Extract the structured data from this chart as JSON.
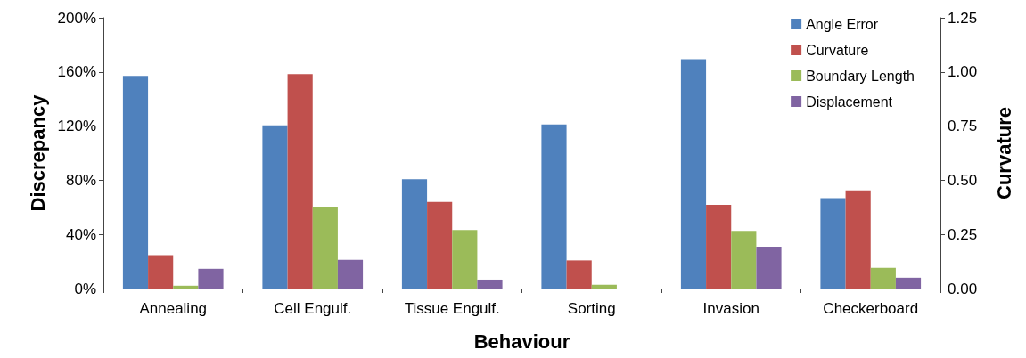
{
  "chart_data": {
    "type": "bar",
    "xlabel": "Behaviour",
    "ylabel": "Discrepancy",
    "y2label": "Curvature",
    "categories": [
      "Annealing",
      "Cell Engulf.",
      "Tissue Engulf.",
      "Sorting",
      "Invasion",
      "Checkerboard"
    ],
    "series": [
      {
        "name": "Angle Error",
        "color": "#4f81bd",
        "values": [
          157,
          120.5,
          80.7,
          121.2,
          169.4,
          66.7
        ]
      },
      {
        "name": "Curvature",
        "color": "#c0504d",
        "axis": "y2",
        "values": [
          0.154,
          0.99,
          0.4,
          0.13,
          0.387,
          0.453
        ]
      },
      {
        "name": "Boundary Length",
        "color": "#9bbb59",
        "values": [
          2.1,
          60.5,
          43.3,
          2.8,
          42.6,
          15.3
        ]
      },
      {
        "name": "Displacement",
        "color": "#8064a2",
        "values": [
          14.6,
          21.2,
          6.6,
          null,
          30.9,
          8
        ]
      }
    ],
    "ylim": [
      0,
      200
    ],
    "yticks": [
      {
        "value": 0,
        "label": "0%"
      },
      {
        "value": 40,
        "label": "40%"
      },
      {
        "value": 80,
        "label": "80%"
      },
      {
        "value": 120,
        "label": "120%"
      },
      {
        "value": 160,
        "label": "160%"
      },
      {
        "value": 200,
        "label": "200%"
      }
    ],
    "y2lim": [
      0,
      1.25
    ],
    "y2ticks": [
      {
        "value": 0,
        "label": "0.00"
      },
      {
        "value": 0.25,
        "label": "0.25"
      },
      {
        "value": 0.5,
        "label": "0.50"
      },
      {
        "value": 0.75,
        "label": "0.75"
      },
      {
        "value": 1,
        "label": "1.00"
      },
      {
        "value": 1.25,
        "label": "1.25"
      }
    ],
    "legend": "top right",
    "grid": false
  }
}
